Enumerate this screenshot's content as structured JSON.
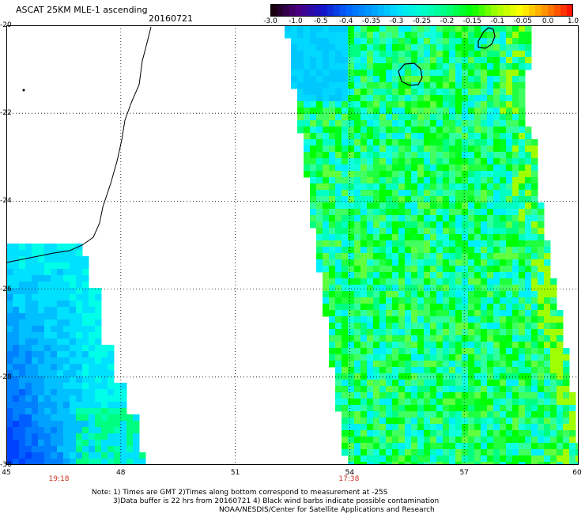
{
  "header": {
    "title": "ASCAT 25KM MLE-1 ascending",
    "date": "20160721"
  },
  "colorbar": {
    "labels": [
      "-3.0",
      "-1.0",
      "-0.5",
      "-0.4",
      "-0.35",
      "-0.3",
      "-0.25",
      "-0.2",
      "-0.15",
      "-0.1",
      "-0.05",
      "0.0",
      "1.0"
    ],
    "colors": [
      "#1a0010",
      "#4b0082",
      "#1414c8",
      "#0064ff",
      "#00a0ff",
      "#00e0ff",
      "#00ffd0",
      "#00ff7f",
      "#00ff00",
      "#a0ff00",
      "#ffff00",
      "#ff9000",
      "#ff1400"
    ]
  },
  "map": {
    "lat_labels": [
      "-20",
      "-22",
      "-24",
      "-26",
      "-28",
      "-30"
    ],
    "lon_labels": [
      "45",
      "48",
      "51",
      "54",
      "57",
      "60"
    ],
    "pass_times": [
      {
        "time": "19:18",
        "lon": 46.4
      },
      {
        "time": "17:38",
        "lon": 54.0
      }
    ]
  },
  "notes": {
    "line1": "Note: 1) Times are GMT 2)Times along bottom correspond to measurement at -25S",
    "line2": "3)Data buffer is 22 hrs from 20160721 4) Black wind barbs indicate possible contamination",
    "line3": "NOAA/NESDIS/Center for Satellite Applications and Research"
  }
}
